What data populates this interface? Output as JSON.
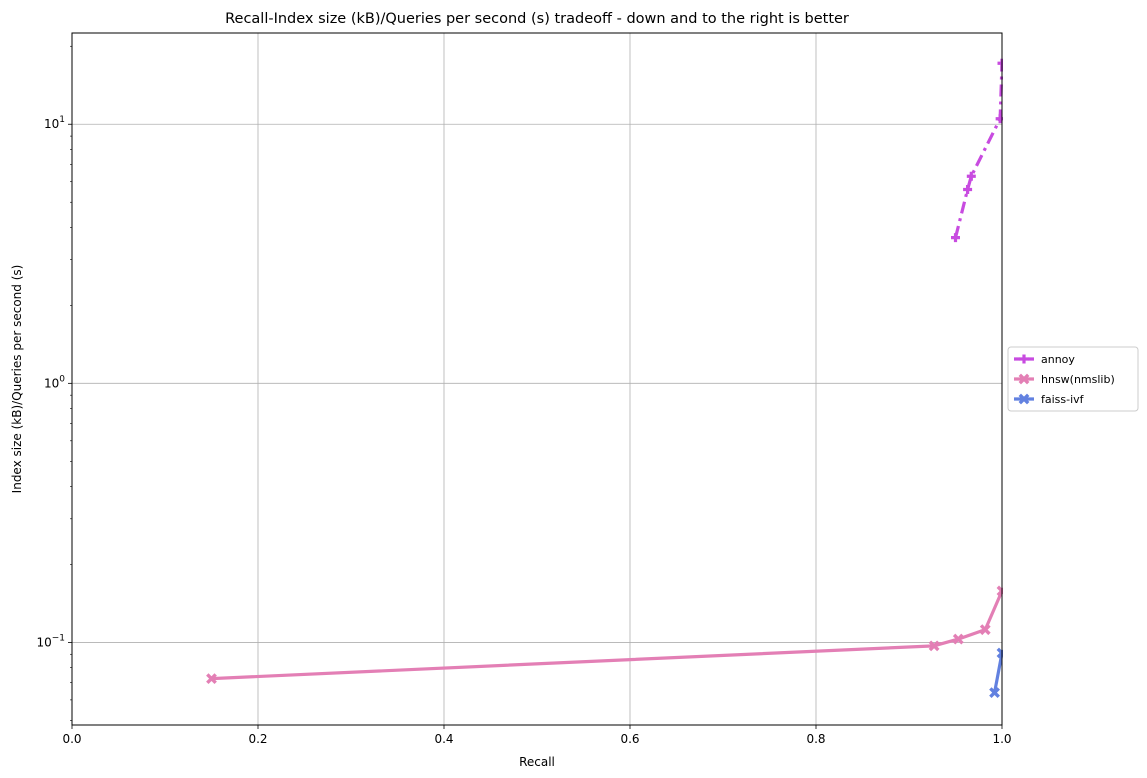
{
  "chart_data": {
    "type": "line",
    "title": "Recall-Index size (kB)/Queries per second (s) tradeoff - down and to the right is better",
    "xlabel": "Recall",
    "ylabel": "Index size (kB)/Queries per second (s)",
    "xlim": [
      0.0,
      1.0
    ],
    "ylim": [
      0.048,
      22.5
    ],
    "yscale": "log",
    "grid": true,
    "legend_position": "right",
    "x_ticks": [
      "0.0",
      "0.2",
      "0.4",
      "0.6",
      "0.8",
      "1.0"
    ],
    "x_tick_values": [
      0.0,
      0.2,
      0.4,
      0.6,
      0.8,
      1.0
    ],
    "y_ticks": [
      "10⁻¹",
      "10⁰",
      "10¹"
    ],
    "y_tick_values": [
      0.1,
      1,
      10
    ],
    "series": [
      {
        "name": "annoy",
        "color": "#c84be0",
        "marker": "plus",
        "linestyle": "dashdot",
        "points": [
          [
            0.95,
            3.65
          ],
          [
            0.963,
            5.6
          ],
          [
            0.967,
            6.3
          ],
          [
            0.998,
            10.5
          ],
          [
            1.0,
            17.2
          ]
        ]
      },
      {
        "name": "hnsw(nmslib)",
        "color": "#e37fb5",
        "marker": "x",
        "linestyle": "solid",
        "points": [
          [
            0.15,
            0.0725
          ],
          [
            0.927,
            0.097
          ],
          [
            0.953,
            0.103
          ],
          [
            0.982,
            0.112
          ],
          [
            1.0,
            0.158
          ]
        ]
      },
      {
        "name": "faiss-ivf",
        "color": "#6281e0",
        "marker": "x",
        "linestyle": "solid",
        "points": [
          [
            0.992,
            0.064
          ],
          [
            1.0,
            0.091
          ]
        ]
      }
    ]
  }
}
